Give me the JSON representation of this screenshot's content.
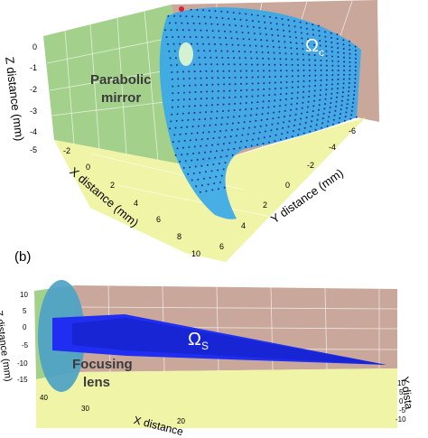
{
  "panel_a": {
    "z_axis_label": "Z distance (mm)",
    "x_axis_label": "X distance (mm)",
    "y_axis_label": "Y distance (mm)",
    "z_ticks": [
      "0",
      "-1",
      "-2",
      "-3",
      "-4",
      "-5"
    ],
    "x_ticks": [
      "-2",
      "0",
      "2",
      "4",
      "6",
      "8",
      "10"
    ],
    "y_ticks": [
      "6",
      "4",
      "2",
      "0",
      "-2",
      "-4",
      "-6"
    ],
    "surface_label": "Ω",
    "surface_sub": "c",
    "object_label_line1": "Parabolic",
    "object_label_line2": "mirror",
    "colors": {
      "left_wall": "#a3d08a",
      "right_wall": "#c9a89b",
      "floor": "#f0f4a6",
      "surface": "#38a8e8",
      "points": "#1a2d9e"
    }
  },
  "panel_b": {
    "panel_label": "(b)",
    "z_axis_label": "Z distance (mm)",
    "x_axis_label": "X distance",
    "y_axis_label": "Y dista",
    "z_ticks": [
      "10",
      "5",
      "0",
      "-5",
      "-10",
      "-15"
    ],
    "x_ticks": [
      "40",
      "30",
      "20"
    ],
    "y_ticks": [
      "10",
      "5",
      "0",
      "-5",
      "-10"
    ],
    "beam_label": "Ω",
    "beam_sub": "S",
    "object_label_line1": "Focusing",
    "object_label_line2": "lens",
    "colors": {
      "left_wall": "#a3d08a",
      "back_wall": "#c9a89b",
      "floor": "#f0f4a6",
      "lens": "#4aa0c6",
      "beam": "#1f2ef0"
    }
  }
}
